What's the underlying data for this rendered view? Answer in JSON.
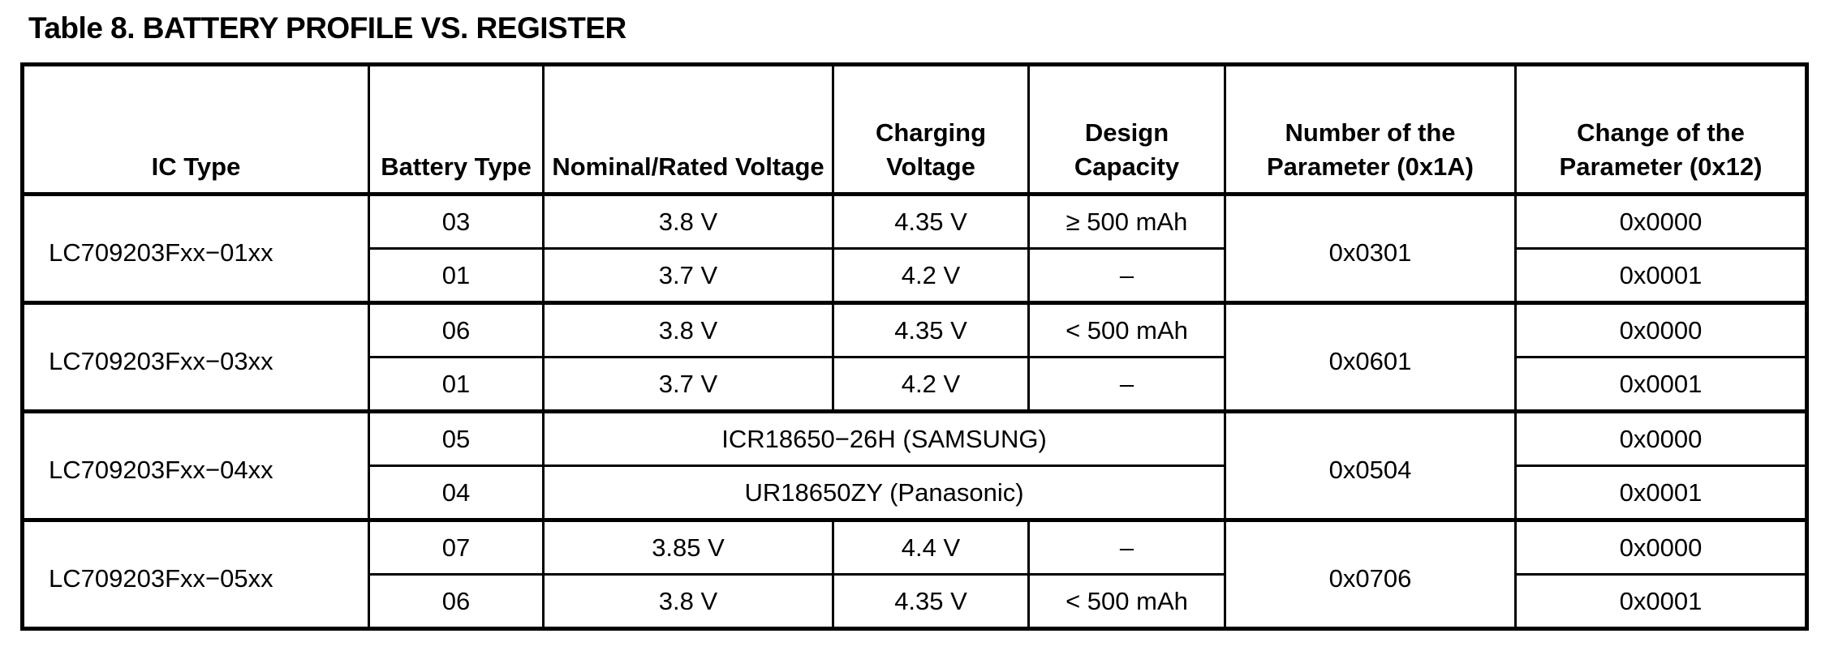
{
  "title": "Table 8. BATTERY PROFILE VS. REGISTER",
  "headers": [
    "IC Type",
    "Battery Type",
    "Nominal/Rated Voltage",
    "Charging Voltage",
    "Design Capacity",
    "Number of the Parameter (0x1A)",
    "Change of the Parameter (0x12)"
  ],
  "groups": [
    {
      "ic": "LC709203Fxx−01xx",
      "param": "0x0301",
      "rows": [
        {
          "battery": "03",
          "nominal": "3.8 V",
          "charging": "4.35 V",
          "capacity": "≥ 500 mAh",
          "change": "0x0000"
        },
        {
          "battery": "01",
          "nominal": "3.7 V",
          "charging": "4.2 V",
          "capacity": "–",
          "change": "0x0001"
        }
      ]
    },
    {
      "ic": "LC709203Fxx−03xx",
      "param": "0x0601",
      "rows": [
        {
          "battery": "06",
          "nominal": "3.8 V",
          "charging": "4.35 V",
          "capacity": "< 500 mAh",
          "change": "0x0000"
        },
        {
          "battery": "01",
          "nominal": "3.7 V",
          "charging": "4.2 V",
          "capacity": "–",
          "change": "0x0001"
        }
      ]
    },
    {
      "ic": "LC709203Fxx−04xx",
      "param": "0x0504",
      "rows": [
        {
          "battery": "05",
          "cell": "ICR18650−26H (SAMSUNG)",
          "change": "0x0000"
        },
        {
          "battery": "04",
          "cell": "UR18650ZY (Panasonic)",
          "change": "0x0001"
        }
      ]
    },
    {
      "ic": "LC709203Fxx−05xx",
      "param": "0x0706",
      "rows": [
        {
          "battery": "07",
          "nominal": "3.85 V",
          "charging": "4.4 V",
          "capacity": "–",
          "change": "0x0000"
        },
        {
          "battery": "06",
          "nominal": "3.8 V",
          "charging": "4.35 V",
          "capacity": "< 500 mAh",
          "change": "0x0001"
        }
      ]
    }
  ]
}
